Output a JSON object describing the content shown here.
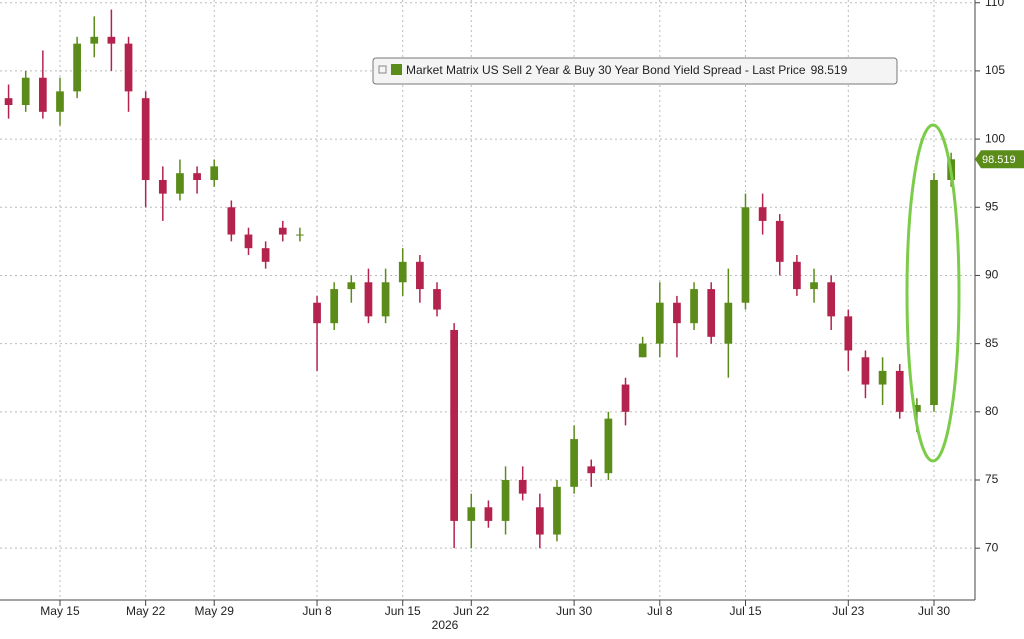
{
  "chart_data": {
    "type": "candlestick",
    "legend_name": "Market Matrix US Sell 2 Year & Buy 30 Year Bond Yield Spread - Last Price",
    "xlabel": "2026",
    "categories": [
      null,
      null,
      null,
      "May 15",
      null,
      null,
      null,
      null,
      "May 22",
      null,
      null,
      null,
      "May 29",
      null,
      null,
      null,
      null,
      null,
      "Jun 8",
      null,
      null,
      null,
      null,
      "Jun 15",
      null,
      null,
      null,
      "Jun 22",
      null,
      null,
      null,
      null,
      null,
      "Jun 30",
      null,
      null,
      null,
      null,
      "Jul 8",
      null,
      null,
      null,
      null,
      "Jul 15",
      null,
      null,
      null,
      null,
      null,
      "Jul 23",
      null,
      null,
      null,
      null,
      "Jul 30",
      null
    ],
    "open": [
      103,
      102.5,
      104.5,
      102,
      103.5,
      107,
      107.5,
      107,
      103,
      97,
      96,
      97.5,
      97,
      95,
      93,
      92,
      93.5,
      93,
      88,
      86.5,
      89,
      89.5,
      87,
      89.5,
      91,
      89,
      86,
      72,
      73,
      72,
      75,
      73,
      71,
      74.5,
      76,
      75.5,
      82,
      84,
      85,
      88,
      86.5,
      89,
      85,
      88,
      95,
      94,
      91,
      89,
      89.5,
      87,
      84,
      82,
      83,
      80,
      80.5,
      97
    ],
    "high": [
      104,
      105,
      106.5,
      104.5,
      107.5,
      109,
      109.5,
      107.5,
      103.5,
      98,
      98.5,
      98,
      98.5,
      95.5,
      93.5,
      92.5,
      94,
      93.5,
      88.5,
      89.5,
      90,
      90.5,
      90.5,
      92,
      91.5,
      89.5,
      86.5,
      74,
      73.5,
      76,
      76,
      74,
      75,
      79,
      76.5,
      80,
      82.5,
      85.5,
      89.5,
      88.5,
      89.5,
      89.5,
      90.5,
      96,
      96,
      94.5,
      91.5,
      90.5,
      90,
      87.5,
      84.5,
      84,
      83.5,
      81,
      97.5,
      99
    ],
    "low": [
      101.5,
      102,
      101.5,
      101,
      103,
      106,
      105,
      102,
      95,
      94,
      95.5,
      96,
      96.5,
      92.5,
      91.5,
      90.5,
      92.5,
      92.5,
      83,
      86,
      88,
      86.5,
      86.5,
      88.5,
      88,
      87,
      70,
      70,
      71.5,
      71,
      73.5,
      70,
      70.5,
      74,
      74.5,
      75,
      79,
      84,
      84,
      84,
      86,
      85,
      82.5,
      87.5,
      93,
      90,
      88.5,
      88,
      86,
      83,
      81,
      80.5,
      79.5,
      78.5,
      80,
      96.5
    ],
    "close": [
      102.5,
      104.5,
      102,
      103.5,
      107,
      107.5,
      107,
      103.5,
      97,
      96,
      97.5,
      97,
      98,
      93,
      92,
      91,
      93,
      93,
      86.5,
      89,
      89.5,
      87,
      89.5,
      91,
      89,
      87.5,
      72,
      73,
      72,
      75,
      74,
      71,
      74.5,
      78,
      75.5,
      79.5,
      80,
      85,
      88,
      86.5,
      89,
      85.5,
      88,
      95,
      94,
      91,
      89,
      89.5,
      87,
      84.5,
      82,
      83,
      80,
      80.5,
      97,
      98.519
    ],
    "up_color": "#5b8c1a",
    "down_color": "#b3234e",
    "ylim": [
      66.2,
      110.2
    ],
    "yticks": [
      70,
      75,
      80,
      85,
      90,
      95,
      100,
      105,
      110
    ],
    "grid": true
  }
}
